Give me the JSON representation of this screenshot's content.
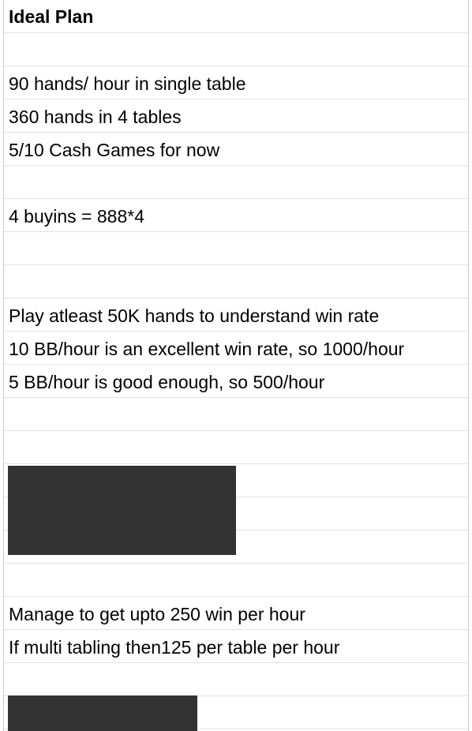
{
  "rows": [
    {
      "text": "Ideal Plan",
      "bold": true
    },
    {
      "text": ""
    },
    {
      "text": "90 hands/ hour in single table"
    },
    {
      "text": "360 hands in 4 tables"
    },
    {
      "text": "5/10 Cash Games for now"
    },
    {
      "text": ""
    },
    {
      "text": "4 buyins = 888*4"
    },
    {
      "text": ""
    },
    {
      "text": ""
    },
    {
      "text": "Play atleast 50K hands to understand win rate"
    },
    {
      "text": "10 BB/hour is an excellent win rate, so 1000/hour"
    },
    {
      "text": "5 BB/hour is good enough, so 500/hour"
    },
    {
      "text": ""
    },
    {
      "text": ""
    },
    {
      "text": ""
    },
    {
      "text": ""
    },
    {
      "text": ""
    },
    {
      "text": ""
    },
    {
      "text": "Manage to get upto 250 win per hour"
    },
    {
      "text": "If multi tabling then125 per table per hour"
    },
    {
      "text": ""
    },
    {
      "text": ""
    }
  ],
  "colors": {
    "redaction": "#333333",
    "gridline": "#e2e2e2",
    "border": "#c6c6c6"
  }
}
